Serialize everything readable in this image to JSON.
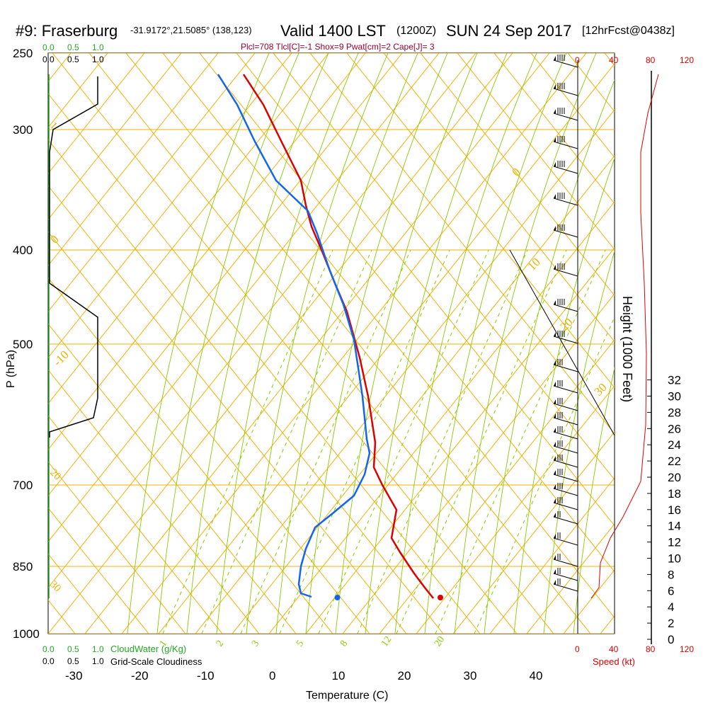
{
  "header": {
    "station": "#9: Fraserburg",
    "coords": "-31.9172°,21.5085° (138,123)",
    "valid": "Valid 1400 LST",
    "zulu": "(1200Z)",
    "date": "SUN 24 Sep 2017",
    "forecast": "[12hrFcst@0438z]",
    "params": "Plcl=708 Tlcl[C]=-1 Shox=9 Pwat[cm]=2 Cape[J]= 3"
  },
  "colors": {
    "isobar": "#f0b000",
    "dry_adiabat": "#88cc00",
    "temperature": "#dd0000",
    "dewpoint": "#1166ee",
    "cloud_water": "#22aa22",
    "cloudiness": "#000000"
  },
  "legend": {
    "cloudwater_label": "CloudWater (g/Kg)",
    "cloudiness_label": "Grid-Scale Cloudiness",
    "speed_label": "Speed (kt)"
  },
  "chart_data": {
    "type": "line",
    "title": "#9: Fraserburg Valid 1400 LST (1200Z) SUN 24 Sep 2017",
    "xlabel": "Temperature (C)",
    "ylabel": "P (hPa)",
    "y2label": "Height (1000 Feet)",
    "x_ticks": [
      "-30",
      "-20",
      "-10",
      "0",
      "10",
      "20",
      "30",
      "40"
    ],
    "y_ticks": [
      "250",
      "300",
      "400",
      "500",
      "700",
      "850",
      "1000"
    ],
    "height_ticks": [
      "0",
      "2",
      "4",
      "6",
      "8",
      "10",
      "12",
      "14",
      "16",
      "18",
      "20",
      "22",
      "24",
      "26",
      "28",
      "30",
      "32"
    ],
    "speed_ticks": [
      "0",
      "40",
      "80",
      "120"
    ],
    "cloud_ticks": [
      "0.0",
      "0.5",
      "1.0"
    ],
    "adiabat_labels": [
      "-10",
      "0",
      "10",
      "20",
      "30"
    ],
    "mixing_labels": [
      "1",
      "2",
      "3",
      "5",
      "8",
      "12",
      "20"
    ],
    "series": [
      {
        "name": "Temperature",
        "points": [
          [
            -4,
            268
          ],
          [
            -1,
            285
          ],
          [
            2,
            310
          ],
          [
            5,
            335
          ],
          [
            6,
            356
          ],
          [
            6.5,
            375
          ],
          [
            7,
            400
          ],
          [
            7.5,
            435
          ],
          [
            8,
            470
          ],
          [
            8,
            505
          ],
          [
            7.5,
            545
          ],
          [
            7,
            590
          ],
          [
            7.5,
            625
          ],
          [
            6,
            660
          ],
          [
            2.5,
            705
          ],
          [
            -1,
            750
          ],
          [
            -3,
            780
          ],
          [
            -2.5,
            810
          ],
          [
            -3.5,
            840
          ],
          [
            -2,
            870
          ],
          [
            -0.5,
            895
          ],
          [
            3,
            925
          ],
          [
            6,
            950
          ],
          [
            8,
            962
          ],
          [
            10,
            965
          ]
        ]
      },
      {
        "name": "Dewpoint",
        "points": [
          [
            -7,
            260
          ],
          [
            -5,
            285
          ],
          [
            -3,
            310
          ],
          [
            -2,
            340
          ],
          [
            -3,
            357
          ],
          [
            3,
            373
          ],
          [
            5,
            400
          ],
          [
            6,
            435
          ],
          [
            7,
            470
          ],
          [
            7.5,
            505
          ],
          [
            7.5,
            545
          ],
          [
            6.5,
            590
          ],
          [
            6.5,
            625
          ],
          [
            5.5,
            660
          ],
          [
            2,
            705
          ],
          [
            -6,
            755
          ],
          [
            -13,
            795
          ],
          [
            -17,
            840
          ],
          [
            -18.5,
            880
          ],
          [
            -20,
            920
          ],
          [
            -20,
            950
          ],
          [
            -17,
            965
          ],
          [
            -15,
            966
          ]
        ]
      }
    ],
    "surface_temperature": 25,
    "surface_dewpoint": 10,
    "cloudiness": [
      [
        1.0,
        255
      ],
      [
        1.0,
        298
      ],
      [
        0.0,
        305
      ],
      [
        0.0,
        335
      ],
      [
        0.0,
        440
      ],
      [
        1.0,
        468
      ],
      [
        1.0,
        560
      ],
      [
        1.0,
        600
      ],
      [
        0.0,
        615
      ],
      [
        0.0,
        640
      ]
    ],
    "wind_speed_kt": [
      [
        30,
        105
      ],
      [
        29,
        150
      ],
      [
        28,
        200
      ],
      [
        27,
        250
      ],
      [
        25,
        300
      ],
      [
        23,
        350
      ],
      [
        22,
        400
      ],
      [
        20,
        450
      ],
      [
        19,
        500
      ],
      [
        18,
        550
      ],
      [
        18,
        600
      ],
      [
        20,
        650
      ],
      [
        21,
        700
      ],
      [
        22,
        740
      ],
      [
        14,
        790
      ],
      [
        8,
        805
      ],
      [
        6,
        830
      ],
      [
        6,
        850
      ],
      [
        5,
        870
      ],
      [
        3,
        880
      ],
      [
        0,
        885
      ]
    ],
    "barbs": [
      [
        85,
        4
      ],
      [
        125,
        4
      ],
      [
        160,
        4
      ],
      [
        200,
        4
      ],
      [
        235,
        4
      ],
      [
        280,
        4
      ],
      [
        325,
        4
      ],
      [
        380,
        4
      ],
      [
        430,
        4
      ],
      [
        475,
        4
      ],
      [
        515,
        3
      ],
      [
        545,
        3
      ],
      [
        570,
        3
      ],
      [
        590,
        3
      ],
      [
        610,
        3
      ],
      [
        630,
        3
      ],
      [
        650,
        3
      ],
      [
        670,
        3
      ],
      [
        690,
        3
      ],
      [
        710,
        3
      ],
      [
        730,
        2
      ],
      [
        760,
        2
      ],
      [
        790,
        2
      ],
      [
        810,
        2
      ],
      [
        825,
        2
      ]
    ]
  }
}
